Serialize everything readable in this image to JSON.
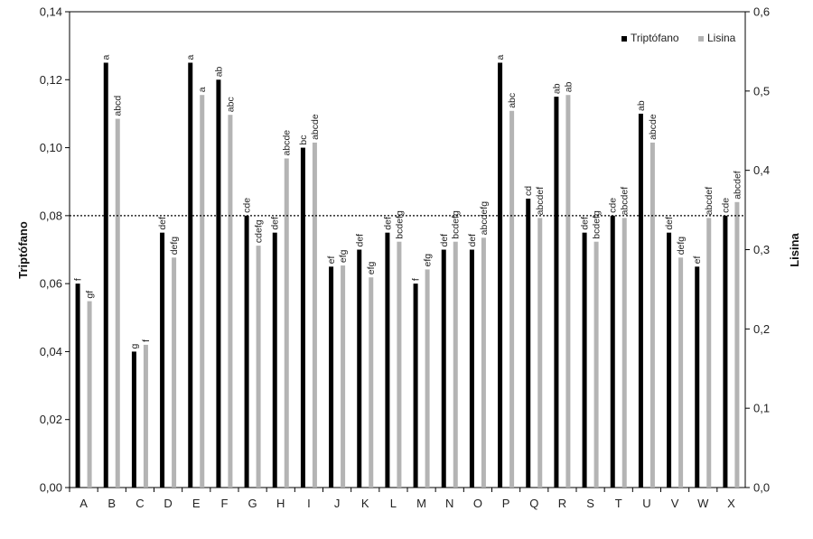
{
  "chart_data": {
    "type": "bar",
    "categories": [
      "A",
      "B",
      "C",
      "D",
      "E",
      "F",
      "G",
      "H",
      "I",
      "J",
      "K",
      "L",
      "M",
      "N",
      "O",
      "P",
      "Q",
      "R",
      "S",
      "T",
      "U",
      "V",
      "W",
      "X"
    ],
    "series": [
      {
        "name": "Triptófano",
        "axis": "left",
        "color": "#000000",
        "values": [
          0.06,
          0.125,
          0.04,
          0.075,
          0.125,
          0.12,
          0.08,
          0.075,
          0.1,
          0.065,
          0.07,
          0.075,
          0.06,
          0.07,
          0.07,
          0.125,
          0.085,
          0.115,
          0.075,
          0.08,
          0.11,
          0.075,
          0.065,
          0.08
        ],
        "labels": [
          "f",
          "a",
          "g",
          "def",
          "a",
          "ab",
          "cde",
          "def",
          "bc",
          "ef",
          "def",
          "def",
          "f",
          "def",
          "def",
          "a",
          "cd",
          "ab",
          "def",
          "cde",
          "ab",
          "def",
          "ef",
          "cde"
        ]
      },
      {
        "name": "Lisina",
        "axis": "right",
        "color": "#b4b4b4",
        "values": [
          0.235,
          0.465,
          0.18,
          0.29,
          0.495,
          0.47,
          0.305,
          0.415,
          0.435,
          0.28,
          0.265,
          0.31,
          0.275,
          0.31,
          0.315,
          0.475,
          0.34,
          0.495,
          0.31,
          0.34,
          0.435,
          0.29,
          0.34,
          0.36
        ],
        "labels": [
          "gf",
          "abcd",
          "f",
          "defg",
          "a",
          "abc",
          "cdefg",
          "abcde",
          "abcde",
          "efg",
          "efg",
          "bcdefg",
          "efg",
          "bcdefg",
          "abcdefg",
          "abc",
          "abcdef",
          "ab",
          "bcdefg",
          "abcdef",
          "abcde",
          "defg",
          "abcdef",
          "abcdef"
        ]
      }
    ],
    "ylabel": "Triptófano",
    "y2label": "Lisina",
    "ylim": [
      0,
      0.14
    ],
    "y2lim": [
      0,
      0.6
    ],
    "yticks": [
      "0,00",
      "0,02",
      "0,04",
      "0,06",
      "0,08",
      "0,10",
      "0,12",
      "0,14"
    ],
    "y2ticks": [
      "0,0",
      "0,1",
      "0,2",
      "0,3",
      "0,4",
      "0,5",
      "0,6"
    ],
    "reference_line": {
      "axis": "left",
      "value": 0.08,
      "style": "dotted"
    },
    "grid": false,
    "legend_position": "top-right"
  }
}
